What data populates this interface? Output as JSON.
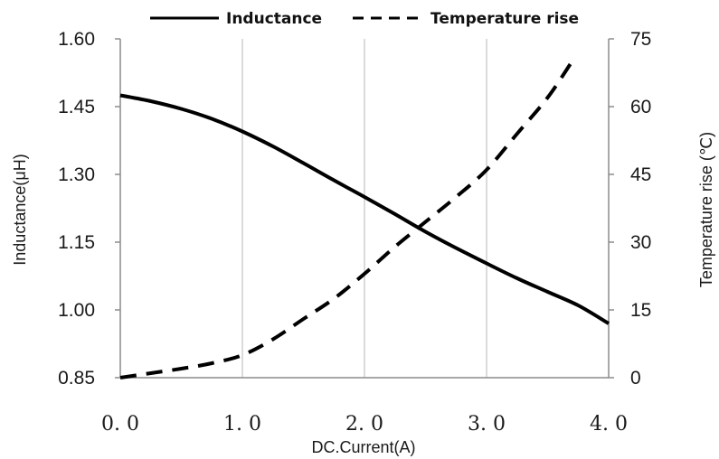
{
  "chart_data": {
    "type": "line",
    "xlabel": "DC.Current(A)",
    "ylabel": "Inductance(μH)",
    "y2label": "Temperature rise (℃)",
    "xlim": [
      0,
      4
    ],
    "ylim": [
      0.85,
      1.6
    ],
    "y2lim": [
      0,
      75
    ],
    "x_ticks": [
      0,
      1,
      2,
      3,
      4
    ],
    "x_tick_labels": [
      "0. 0",
      "1. 0",
      "2. 0",
      "3. 0",
      "4. 0"
    ],
    "y_ticks": [
      0.85,
      1.0,
      1.15,
      1.3,
      1.45,
      1.6
    ],
    "y_tick_labels": [
      "0.85",
      "1.00",
      "1.15",
      "1.30",
      "1.45",
      "1.60"
    ],
    "y2_ticks": [
      0,
      15,
      30,
      45,
      60,
      75
    ],
    "y2_tick_labels": [
      "0",
      "15",
      "30",
      "45",
      "60",
      "75"
    ],
    "grid": "vertical",
    "legend_position": "top",
    "series": [
      {
        "name": "Inductance",
        "axis": "left",
        "style": "solid",
        "x": [
          0,
          0.25,
          0.5,
          0.75,
          1.0,
          1.25,
          1.5,
          1.75,
          2.0,
          2.25,
          2.5,
          2.75,
          3.0,
          3.25,
          3.5,
          3.75,
          4.0
        ],
        "y": [
          1.475,
          1.462,
          1.445,
          1.423,
          1.395,
          1.362,
          1.325,
          1.287,
          1.25,
          1.212,
          1.173,
          1.137,
          1.103,
          1.07,
          1.04,
          1.01,
          0.97
        ]
      },
      {
        "name": "Temperature rise",
        "axis": "right",
        "style": "dashed",
        "x": [
          0,
          0.25,
          0.5,
          0.75,
          1.0,
          1.25,
          1.5,
          1.75,
          2.0,
          2.25,
          2.5,
          2.75,
          3.0,
          3.25,
          3.5,
          3.7
        ],
        "y": [
          0,
          1,
          2,
          3.2,
          5,
          8.5,
          13,
          17.5,
          23,
          29,
          34.5,
          40,
          46,
          54,
          62,
          70
        ]
      }
    ]
  }
}
